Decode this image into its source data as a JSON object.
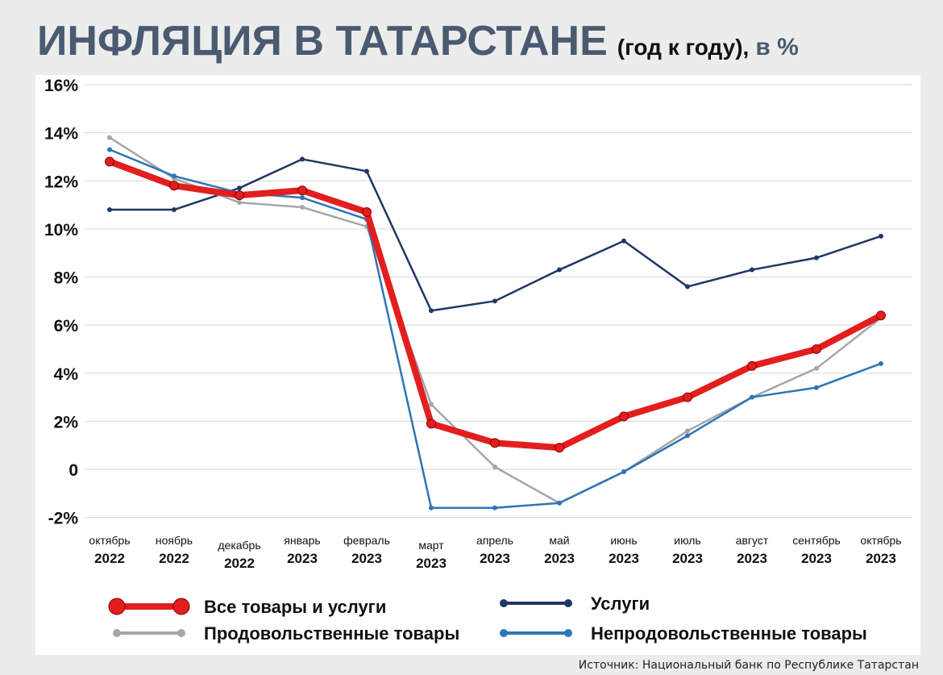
{
  "chart_data": {
    "type": "line",
    "title": "ИНФЛЯЦИЯ В ТАТАРСТАНЕ",
    "subtitle": "(год к году),",
    "unit_label": "в %",
    "categories": [
      [
        "октябрь",
        "2022"
      ],
      [
        "ноябрь",
        "2022"
      ],
      [
        "декабрь",
        "2022"
      ],
      [
        "январь",
        "2023"
      ],
      [
        "февраль",
        "2023"
      ],
      [
        "март",
        "2023"
      ],
      [
        "апрель",
        "2023"
      ],
      [
        "май",
        "2023"
      ],
      [
        "июнь",
        "2023"
      ],
      [
        "июль",
        "2023"
      ],
      [
        "август",
        "2023"
      ],
      [
        "сентябрь",
        "2023"
      ],
      [
        "октябрь",
        "2023"
      ]
    ],
    "ylim": [
      -2,
      16
    ],
    "yticks": [
      {
        "value": 16,
        "label": "16%"
      },
      {
        "value": 14,
        "label": "14%"
      },
      {
        "value": 12,
        "label": "12%"
      },
      {
        "value": 10,
        "label": "10%"
      },
      {
        "value": 8,
        "label": "8%"
      },
      {
        "value": 6,
        "label": "6%"
      },
      {
        "value": 4,
        "label": "4%"
      },
      {
        "value": 2,
        "label": "2%"
      },
      {
        "value": 0,
        "label": "0"
      },
      {
        "value": -2,
        "label": "-2%"
      }
    ],
    "grid": true,
    "legend_position": "bottom",
    "series": [
      {
        "name": "Услуги",
        "color": "#1f3864",
        "values": [
          10.8,
          10.8,
          11.7,
          12.9,
          12.4,
          6.6,
          7.0,
          8.3,
          9.5,
          7.6,
          8.3,
          8.8,
          9.7
        ]
      },
      {
        "name": "Продовольственные товары",
        "color": "#a6a6a6",
        "values": [
          13.8,
          12.1,
          11.1,
          10.9,
          10.1,
          2.7,
          0.1,
          -1.4,
          -0.1,
          1.6,
          3.0,
          4.2,
          6.3
        ]
      },
      {
        "name": "Непродовольственные товары",
        "color": "#2e75b6",
        "values": [
          13.3,
          12.2,
          11.5,
          11.3,
          10.4,
          -1.6,
          -1.6,
          -1.4,
          -0.1,
          1.4,
          3.0,
          3.4,
          4.4
        ]
      },
      {
        "name": "Все товары и услуги",
        "color": "#e31e1e",
        "values": [
          12.8,
          11.8,
          11.4,
          11.6,
          10.7,
          1.9,
          1.1,
          0.9,
          2.2,
          3.0,
          4.3,
          5.0,
          6.4
        ]
      }
    ],
    "source": "Источник: Национальный банк по Республике Татарстан"
  }
}
